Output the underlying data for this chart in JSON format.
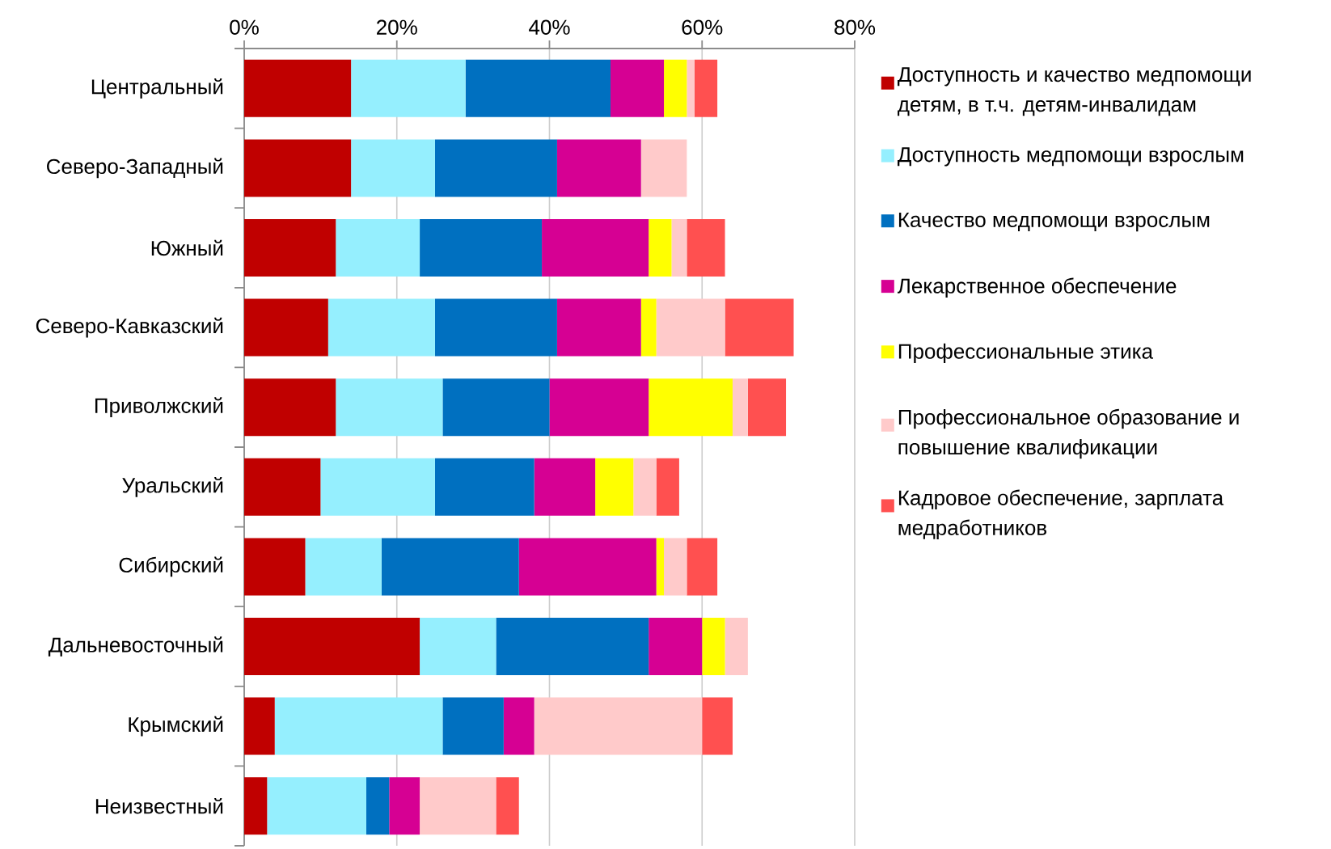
{
  "chart_data": {
    "type": "bar",
    "orientation": "horizontal",
    "stacked": true,
    "categories": [
      "Центральный",
      "Северо-Западный",
      "Южный",
      "Северо-Кавказский",
      "Приволжский",
      "Уральский",
      "Сибирский",
      "Дальневосточный",
      "Крымский",
      "Неизвестный"
    ],
    "series": [
      {
        "name": "Доступность и качество медпомощи детям, в т.ч. детям-инвалидам",
        "color": "#c00000",
        "values": [
          14,
          14,
          12,
          11,
          12,
          10,
          8,
          23,
          4,
          3
        ]
      },
      {
        "name": "Доступность медпомощи взрослым",
        "color": "#95effe",
        "values": [
          15,
          11,
          11,
          14,
          14,
          15,
          10,
          10,
          22,
          13
        ]
      },
      {
        "name": "Качество медпомощи взрослым",
        "color": "#0070c0",
        "values": [
          19,
          16,
          16,
          16,
          14,
          13,
          18,
          20,
          8,
          3
        ]
      },
      {
        "name": "Лекарственное обеспечение",
        "color": "#d60093",
        "values": [
          7,
          11,
          14,
          11,
          13,
          8,
          18,
          7,
          4,
          4
        ]
      },
      {
        "name": "Профессиональные этика",
        "color": "#ffff00",
        "values": [
          3,
          0,
          3,
          2,
          11,
          5,
          1,
          3,
          0,
          0
        ]
      },
      {
        "name": "Профессиональное образование и повышение квалификации",
        "color": "#ffcaca",
        "values": [
          1,
          6,
          2,
          9,
          2,
          3,
          3,
          3,
          22,
          10
        ]
      },
      {
        "name": "Кадровое обеспечение, зарплата медработников",
        "color": "#ff5050",
        "values": [
          3,
          0,
          5,
          9,
          5,
          3,
          4,
          0,
          4,
          3
        ]
      }
    ],
    "xlim": [
      0,
      80
    ],
    "xticks": [
      {
        "value": 0,
        "label": "0%"
      },
      {
        "value": 20,
        "label": "20%"
      },
      {
        "value": 40,
        "label": "40%"
      },
      {
        "value": 60,
        "label": "60%"
      },
      {
        "value": 80,
        "label": "80%"
      }
    ],
    "grid": "x",
    "legend": "right"
  }
}
